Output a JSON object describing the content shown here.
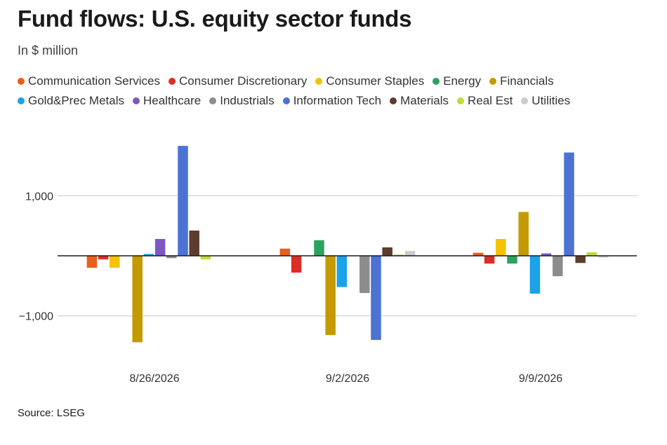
{
  "title": "Fund flows: U.S. equity sector funds",
  "subtitle": "In $ million",
  "source": "Source: LSEG",
  "chart_data": {
    "type": "bar",
    "categories": [
      "8/26/2026",
      "9/2/2026",
      "9/9/2026"
    ],
    "ylim": [
      -1650,
      1860
    ],
    "yticks": [
      1000,
      -1000
    ],
    "ytick_labels": [
      "1,000",
      "−1,000"
    ],
    "grid": true,
    "legend_position": "top",
    "series": [
      {
        "name": "Communication Services",
        "color": "#e8601c",
        "values": [
          -200,
          120,
          50
        ]
      },
      {
        "name": "Consumer Discretionary",
        "color": "#de2d26",
        "values": [
          -60,
          -280,
          -130
        ]
      },
      {
        "name": "Consumer Staples",
        "color": "#f5c200",
        "values": [
          -200,
          0,
          280
        ]
      },
      {
        "name": "Energy",
        "color": "#2ca25f",
        "values": [
          0,
          260,
          -130
        ]
      },
      {
        "name": "Financials",
        "color": "#c49a00",
        "values": [
          -1440,
          -1320,
          730
        ]
      },
      {
        "name": "Gold&Prec Metals",
        "color": "#1aa3e8",
        "values": [
          30,
          -520,
          -630
        ]
      },
      {
        "name": "Healthcare",
        "color": "#7e57c2",
        "values": [
          280,
          0,
          40
        ]
      },
      {
        "name": "Industrials",
        "color": "#8c8c8c",
        "values": [
          -40,
          -620,
          -340
        ]
      },
      {
        "name": "Information Tech",
        "color": "#4c72d4",
        "values": [
          1830,
          -1400,
          1720
        ]
      },
      {
        "name": "Materials",
        "color": "#5c3d2e",
        "values": [
          420,
          140,
          -120
        ]
      },
      {
        "name": "Real Est",
        "color": "#c5d934",
        "values": [
          -60,
          20,
          60
        ]
      },
      {
        "name": "Utilities",
        "color": "#cccccc",
        "values": [
          0,
          80,
          -30
        ]
      }
    ]
  }
}
